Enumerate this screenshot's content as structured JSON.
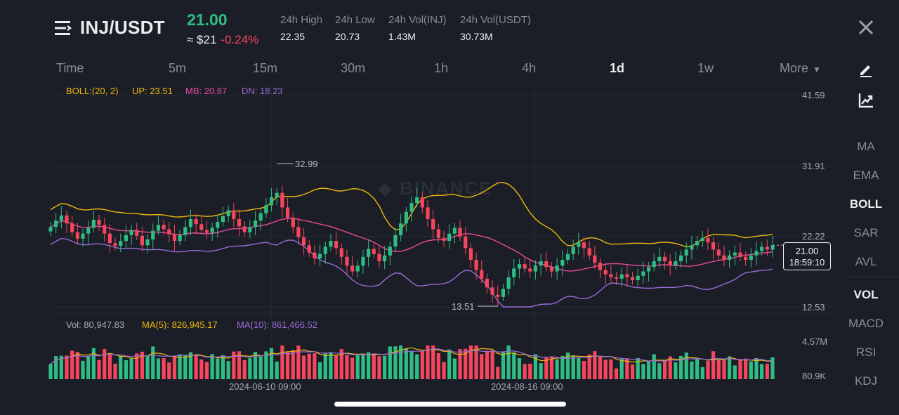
{
  "header": {
    "pair": "INJ/USDT",
    "last_price": "21.00",
    "approx_value": "≈ $21",
    "change": "-0.24%",
    "stats": [
      {
        "label": "24h High",
        "value": "22.35"
      },
      {
        "label": "24h Low",
        "value": "20.73"
      },
      {
        "label": "24h Vol(INJ)",
        "value": "1.43M"
      },
      {
        "label": "24h Vol(USDT)",
        "value": "30.73M"
      }
    ]
  },
  "timeframes": [
    "Time",
    "5m",
    "15m",
    "30m",
    "1h",
    "4h",
    "1d",
    "1w"
  ],
  "active_timeframe": "1d",
  "more_label": "More",
  "sidebar": {
    "main_indicators": [
      "MA",
      "EMA",
      "BOLL",
      "SAR",
      "AVL"
    ],
    "active_main": "BOLL",
    "sub_indicators": [
      "VOL",
      "MACD",
      "RSI",
      "KDJ"
    ],
    "active_sub": "VOL"
  },
  "boll": {
    "params": "BOLL:(20, 2)",
    "up": "UP: 23.51",
    "mb": "MB: 20.87",
    "dn": "DN: 18.23"
  },
  "vol_indicator": {
    "vol": "Vol: 80,947.83",
    "ma5": "MA(5): 826,945.17",
    "ma10": "MA(10): 861,466.52"
  },
  "watermark": "BINANCE",
  "price_axis": [
    "41.59",
    "31.91",
    "22.22",
    "12.53"
  ],
  "vol_axis": [
    "4.57M",
    "80.9K"
  ],
  "date_axis": [
    "2024-06-10 09:00",
    "2024-08-16 09:00"
  ],
  "chart_labels": {
    "high": "32.99",
    "low": "13.51"
  },
  "price_tag": {
    "price": "21.00",
    "countdown": "18:59:10"
  },
  "colors": {
    "up": "#2ebd85",
    "down": "#f6465d",
    "boll_up": "#f0b90b",
    "boll_mb": "#e84a9d",
    "boll_dn": "#9a6bd8",
    "background": "#1b1e26"
  },
  "chart_data": {
    "type": "candlestick",
    "interval": "1d",
    "price_range": [
      12.53,
      41.59
    ],
    "approx_closes": [
      23.5,
      24.4,
      25.1,
      24.0,
      22.8,
      21.9,
      22.6,
      23.4,
      24.5,
      23.8,
      22.6,
      21.3,
      20.9,
      21.6,
      22.4,
      23.1,
      22.3,
      21.0,
      21.8,
      23.0,
      23.8,
      23.2,
      22.5,
      21.6,
      22.4,
      23.5,
      24.6,
      23.9,
      23.1,
      22.7,
      23.4,
      24.2,
      25.0,
      25.8,
      24.6,
      23.6,
      22.8,
      23.5,
      24.4,
      25.4,
      26.5,
      27.6,
      28.2,
      26.2,
      24.8,
      23.5,
      22.1,
      21.0,
      20.0,
      19.2,
      19.8,
      20.8,
      21.6,
      20.6,
      19.4,
      18.2,
      17.4,
      18.2,
      19.4,
      20.5,
      19.8,
      18.8,
      19.6,
      20.8,
      22.4,
      24.0,
      25.6,
      26.8,
      27.6,
      26.2,
      24.6,
      23.2,
      22.0,
      21.6,
      22.6,
      23.4,
      22.2,
      20.6,
      19.0,
      17.6,
      16.4,
      15.2,
      14.2,
      13.9,
      15.0,
      16.6,
      17.8,
      18.4,
      17.8,
      17.4,
      18.2,
      18.8,
      18.0,
      17.4,
      18.2,
      19.0,
      19.8,
      20.8,
      21.4,
      20.6,
      19.6,
      18.6,
      17.6,
      17.0,
      16.6,
      16.4,
      17.0,
      16.6,
      16.2,
      16.8,
      17.4,
      18.0,
      18.8,
      19.4,
      18.8,
      18.2,
      18.8,
      19.6,
      20.4,
      21.0,
      21.6,
      22.0,
      21.4,
      20.4,
      19.6,
      19.0,
      19.6,
      20.0,
      19.4,
      19.0,
      19.6,
      20.2,
      20.8,
      20.4,
      21.0
    ],
    "volume_range": [
      80900,
      4570000
    ]
  }
}
